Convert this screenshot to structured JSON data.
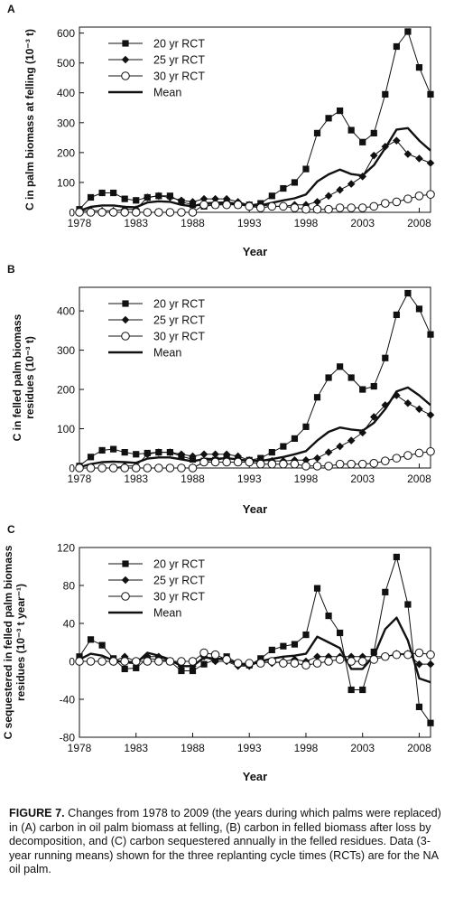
{
  "chart_data": [
    {
      "panel": "A",
      "type": "line",
      "ylabel": "C in palm biomass at felling (10⁻³ t)",
      "xlabel": "Year",
      "xlim": [
        1978,
        2009
      ],
      "ylim": [
        0,
        620
      ],
      "xticks": [
        1978,
        1983,
        1988,
        1993,
        1998,
        2003,
        2008
      ],
      "yticks": [
        0,
        100,
        200,
        300,
        400,
        500,
        600
      ],
      "legend_position": "top-left",
      "series": [
        {
          "name": "20 yr RCT",
          "marker": "filled-square",
          "x": [
            1978,
            1979,
            1980,
            1981,
            1982,
            1983,
            1984,
            1985,
            1986,
            1987,
            1988,
            1989,
            1990,
            1991,
            1992,
            1993,
            1994,
            1995,
            1996,
            1997,
            1998,
            1999,
            2000,
            2001,
            2002,
            2003,
            2004,
            2005,
            2006,
            2007,
            2008,
            2009
          ],
          "y": [
            10,
            50,
            65,
            65,
            45,
            40,
            50,
            55,
            55,
            35,
            25,
            20,
            25,
            30,
            25,
            25,
            30,
            55,
            80,
            100,
            145,
            265,
            315,
            340,
            275,
            235,
            265,
            395,
            555,
            605,
            485,
            395
          ]
        },
        {
          "name": "25 yr RCT",
          "marker": "filled-diamond",
          "x": [
            1978,
            1979,
            1980,
            1981,
            1982,
            1983,
            1984,
            1985,
            1986,
            1987,
            1988,
            1989,
            1990,
            1991,
            1992,
            1993,
            1994,
            1995,
            1996,
            1997,
            1998,
            1999,
            2000,
            2001,
            2002,
            2003,
            2004,
            2005,
            2006,
            2007,
            2008,
            2009
          ],
          "y": [
            5,
            5,
            5,
            5,
            10,
            10,
            50,
            55,
            50,
            40,
            35,
            45,
            45,
            45,
            35,
            25,
            25,
            20,
            20,
            25,
            25,
            35,
            55,
            75,
            95,
            120,
            190,
            220,
            240,
            195,
            180,
            165
          ]
        },
        {
          "name": "30 yr RCT",
          "marker": "open-circle",
          "x": [
            1978,
            1979,
            1980,
            1981,
            1982,
            1983,
            1984,
            1985,
            1986,
            1987,
            1988,
            1989,
            1990,
            1991,
            1992,
            1993,
            1994,
            1995,
            1996,
            1997,
            1998,
            1999,
            2000,
            2001,
            2002,
            2003,
            2004,
            2005,
            2006,
            2007,
            2008,
            2009
          ],
          "y": [
            0,
            0,
            0,
            0,
            0,
            0,
            0,
            0,
            0,
            0,
            0,
            25,
            25,
            25,
            25,
            20,
            15,
            20,
            20,
            15,
            10,
            10,
            10,
            15,
            15,
            15,
            20,
            30,
            35,
            45,
            55,
            60
          ]
        },
        {
          "name": "Mean",
          "marker": "none",
          "x": [
            1978,
            1979,
            1980,
            1981,
            1982,
            1983,
            1984,
            1985,
            1986,
            1987,
            1988,
            1989,
            1990,
            1991,
            1992,
            1993,
            1994,
            1995,
            1996,
            1997,
            1998,
            1999,
            2000,
            2001,
            2002,
            2003,
            2004,
            2005,
            2006,
            2007,
            2008,
            2009
          ],
          "y": [
            5,
            18,
            23,
            23,
            18,
            17,
            33,
            37,
            35,
            25,
            20,
            30,
            32,
            33,
            28,
            23,
            23,
            32,
            40,
            47,
            60,
            103,
            127,
            143,
            128,
            123,
            158,
            215,
            277,
            282,
            240,
            207
          ]
        }
      ]
    },
    {
      "panel": "B",
      "type": "line",
      "ylabel": "C in felled palm biomass residues (10⁻³ t)",
      "xlabel": "Year",
      "xlim": [
        1978,
        2009
      ],
      "ylim": [
        0,
        460
      ],
      "xticks": [
        1978,
        1983,
        1988,
        1993,
        1998,
        2003,
        2008
      ],
      "yticks": [
        0,
        100,
        200,
        300,
        400
      ],
      "legend_position": "top-left",
      "series": [
        {
          "name": "20 yr RCT",
          "marker": "filled-square",
          "x": [
            1978,
            1979,
            1980,
            1981,
            1982,
            1983,
            1984,
            1985,
            1986,
            1987,
            1988,
            1989,
            1990,
            1991,
            1992,
            1993,
            1994,
            1995,
            1996,
            1997,
            1998,
            1999,
            2000,
            2001,
            2002,
            2003,
            2004,
            2005,
            2006,
            2007,
            2008,
            2009
          ],
          "y": [
            5,
            28,
            45,
            48,
            40,
            35,
            38,
            40,
            40,
            30,
            22,
            18,
            20,
            25,
            22,
            20,
            25,
            40,
            55,
            75,
            105,
            180,
            230,
            258,
            230,
            200,
            208,
            280,
            390,
            445,
            405,
            340
          ]
        },
        {
          "name": "25 yr RCT",
          "marker": "filled-diamond",
          "x": [
            1978,
            1979,
            1980,
            1981,
            1982,
            1983,
            1984,
            1985,
            1986,
            1987,
            1988,
            1989,
            1990,
            1991,
            1992,
            1993,
            1994,
            1995,
            1996,
            1997,
            1998,
            1999,
            2000,
            2001,
            2002,
            2003,
            2004,
            2005,
            2006,
            2007,
            2008,
            2009
          ],
          "y": [
            0,
            0,
            0,
            0,
            5,
            5,
            35,
            40,
            40,
            35,
            30,
            35,
            35,
            35,
            30,
            20,
            20,
            18,
            18,
            20,
            20,
            25,
            40,
            55,
            70,
            90,
            130,
            160,
            185,
            165,
            150,
            135
          ]
        },
        {
          "name": "30 yr RCT",
          "marker": "open-circle",
          "x": [
            1978,
            1979,
            1980,
            1981,
            1982,
            1983,
            1984,
            1985,
            1986,
            1987,
            1988,
            1989,
            1990,
            1991,
            1992,
            1993,
            1994,
            1995,
            1996,
            1997,
            1998,
            1999,
            2000,
            2001,
            2002,
            2003,
            2004,
            2005,
            2006,
            2007,
            2008,
            2009
          ],
          "y": [
            0,
            0,
            0,
            0,
            0,
            0,
            0,
            0,
            0,
            0,
            0,
            15,
            15,
            15,
            15,
            15,
            10,
            10,
            10,
            10,
            5,
            5,
            5,
            10,
            10,
            10,
            12,
            18,
            25,
            32,
            38,
            42
          ]
        },
        {
          "name": "Mean",
          "marker": "none",
          "x": [
            1978,
            1979,
            1980,
            1981,
            1982,
            1983,
            1984,
            1985,
            1986,
            1987,
            1988,
            1989,
            1990,
            1991,
            1992,
            1993,
            1994,
            1995,
            1996,
            1997,
            1998,
            1999,
            2000,
            2001,
            2002,
            2003,
            2004,
            2005,
            2006,
            2007,
            2008,
            2009
          ],
          "y": [
            2,
            10,
            15,
            16,
            15,
            13,
            24,
            27,
            27,
            22,
            17,
            23,
            23,
            25,
            22,
            18,
            18,
            23,
            28,
            35,
            43,
            70,
            92,
            103,
            98,
            95,
            115,
            150,
            195,
            205,
            185,
            160
          ]
        }
      ]
    },
    {
      "panel": "C",
      "type": "line",
      "ylabel": "C sequestered in felled palm biomass residues (10⁻³ t year⁻¹)",
      "xlabel": "Year",
      "xlim": [
        1978,
        2009
      ],
      "ylim": [
        -80,
        120
      ],
      "xticks": [
        1978,
        1983,
        1988,
        1993,
        1998,
        2003,
        2008
      ],
      "yticks": [
        -80,
        -40,
        0,
        40,
        80,
        120
      ],
      "legend_position": "top-left",
      "series": [
        {
          "name": "20 yr RCT",
          "marker": "filled-square",
          "x": [
            1978,
            1979,
            1980,
            1981,
            1982,
            1983,
            1984,
            1985,
            1986,
            1987,
            1988,
            1989,
            1990,
            1991,
            1992,
            1993,
            1994,
            1995,
            1996,
            1997,
            1998,
            1999,
            2000,
            2001,
            2002,
            2003,
            2004,
            2005,
            2006,
            2007,
            2008,
            2009
          ],
          "y": [
            5,
            23,
            17,
            3,
            -8,
            -7,
            3,
            2,
            0,
            -10,
            -10,
            -3,
            2,
            5,
            -2,
            -4,
            3,
            12,
            16,
            18,
            28,
            77,
            48,
            30,
            -30,
            -30,
            10,
            73,
            110,
            60,
            -48,
            -65
          ]
        },
        {
          "name": "25 yr RCT",
          "marker": "filled-diamond",
          "x": [
            1978,
            1979,
            1980,
            1981,
            1982,
            1983,
            1984,
            1985,
            1986,
            1987,
            1988,
            1989,
            1990,
            1991,
            1992,
            1993,
            1994,
            1995,
            1996,
            1997,
            1998,
            1999,
            2000,
            2001,
            2002,
            2003,
            2004,
            2005,
            2006,
            2007,
            2008,
            2009
          ],
          "y": [
            0,
            0,
            0,
            0,
            5,
            0,
            5,
            5,
            0,
            -5,
            -5,
            5,
            0,
            0,
            -5,
            -5,
            0,
            -2,
            0,
            2,
            0,
            5,
            5,
            5,
            5,
            5,
            5,
            5,
            8,
            8,
            -3,
            -3
          ]
        },
        {
          "name": "30 yr RCT",
          "marker": "open-circle",
          "x": [
            1978,
            1979,
            1980,
            1981,
            1982,
            1983,
            1984,
            1985,
            1986,
            1987,
            1988,
            1989,
            1990,
            1991,
            1992,
            1993,
            1994,
            1995,
            1996,
            1997,
            1998,
            1999,
            2000,
            2001,
            2002,
            2003,
            2004,
            2005,
            2006,
            2007,
            2008,
            2009
          ],
          "y": [
            0,
            0,
            0,
            0,
            0,
            0,
            0,
            0,
            0,
            0,
            0,
            9,
            7,
            2,
            -2,
            -2,
            -2,
            0,
            -2,
            -2,
            -4,
            -2,
            0,
            2,
            0,
            0,
            2,
            5,
            7,
            7,
            9,
            7
          ]
        },
        {
          "name": "Mean",
          "marker": "none",
          "x": [
            1978,
            1979,
            1980,
            1981,
            1982,
            1983,
            1984,
            1985,
            1986,
            1987,
            1988,
            1989,
            1990,
            1991,
            1992,
            1993,
            1994,
            1995,
            1996,
            1997,
            1998,
            1999,
            2000,
            2001,
            2002,
            2003,
            2004,
            2005,
            2006,
            2007,
            2008,
            2009
          ],
          "y": [
            2,
            8,
            6,
            1,
            -1,
            -2,
            9,
            6,
            2,
            -5,
            -5,
            4,
            3,
            2,
            -3,
            -4,
            0,
            3,
            5,
            6,
            8,
            26,
            20,
            14,
            -8,
            -8,
            6,
            34,
            46,
            22,
            -18,
            -22
          ]
        }
      ]
    }
  ],
  "caption": {
    "label": "FIGURE 7.",
    "text": " Changes from 1978 to 2009 (the years during which palms were replaced) in (A) carbon in oil palm biomass at felling, (B) carbon in felled biomass after loss by decomposition, and (C) carbon sequestered annually in the felled residues. Data (3-year running means) shown for the three replanting cycle times (RCTs) are for the NA oil palm."
  }
}
